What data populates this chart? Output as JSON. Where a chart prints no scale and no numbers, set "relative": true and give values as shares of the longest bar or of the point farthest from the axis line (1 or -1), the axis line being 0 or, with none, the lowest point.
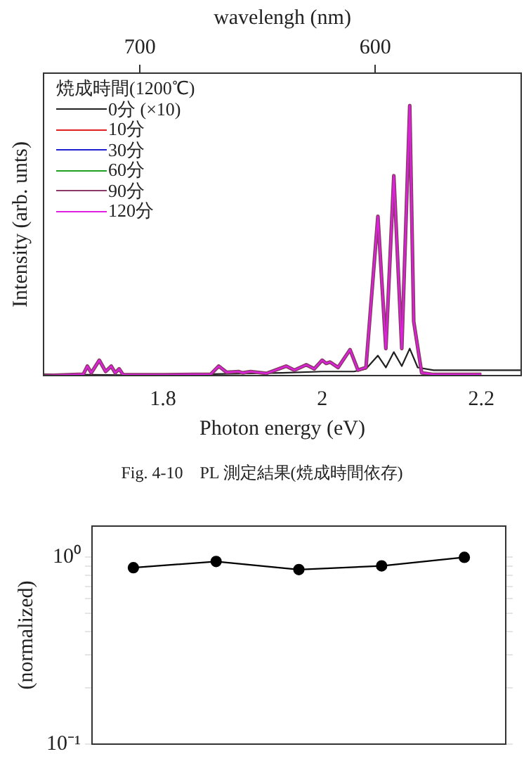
{
  "chart_data": [
    {
      "type": "line",
      "relative": true,
      "xlabel": "Photon energy (eV)",
      "ylabel": "Intensity (arb. unts)",
      "x2label": "wavelengh (nm)",
      "xlim": [
        1.65,
        2.25
      ],
      "xticks": [
        1.8,
        2,
        2.2
      ],
      "x2lim": [
        741,
        538
      ],
      "x2ticks": [
        700,
        600
      ],
      "legend": "top left",
      "legend_title": "焼成時間(1200℃)",
      "marker": "none",
      "annotations": [
        "Fig. 4-10　PL 測定結果(焼成時間依存)"
      ],
      "series": [
        {
          "name": "0分 (×10)",
          "color": "#202020",
          "x": [
            1.65,
            1.75,
            1.85,
            1.95,
            2.0,
            2.04,
            2.055,
            2.07,
            2.08,
            2.09,
            2.1,
            2.11,
            2.12,
            2.14,
            2.2,
            2.25
          ],
          "values": [
            0.005,
            0.002,
            0.005,
            0.01,
            0.015,
            0.015,
            0.025,
            0.074,
            0.03,
            0.087,
            0.035,
            0.1,
            0.03,
            0.02,
            0.02,
            0.02
          ]
        },
        {
          "name": "10分",
          "color": "#e02020"
        },
        {
          "name": "30分",
          "color": "#2020d0"
        },
        {
          "name": "60分",
          "color": "#20a020"
        },
        {
          "name": "90分",
          "color": "#8b3a6a",
          "x": [
            1.65,
            1.7,
            1.705,
            1.71,
            1.72,
            1.728,
            1.735,
            1.74,
            1.745,
            1.75,
            1.8,
            1.86,
            1.87,
            1.88,
            1.895,
            1.9,
            1.91,
            1.93,
            1.955,
            1.965,
            1.98,
            1.99,
            2.0,
            2.005,
            2.01,
            2.02,
            2.035,
            2.045,
            2.055,
            2.07,
            2.08,
            2.09,
            2.1,
            2.11,
            2.115,
            2.125,
            2.14,
            2.2
          ],
          "values": [
            0,
            0.005,
            0.035,
            0.01,
            0.057,
            0.015,
            0.035,
            0.01,
            0.025,
            0.003,
            0.003,
            0.005,
            0.035,
            0.012,
            0.015,
            0.01,
            0.015,
            0.008,
            0.035,
            0.02,
            0.04,
            0.025,
            0.057,
            0.045,
            0.05,
            0.03,
            0.096,
            0.02,
            0.03,
            0.59,
            0.1,
            0.74,
            0.1,
            1.0,
            0.2,
            0.01,
            0.004,
            0.004
          ]
        },
        {
          "name": "120分",
          "color": "#e020e0",
          "x": [
            1.65,
            1.7,
            1.705,
            1.71,
            1.72,
            1.728,
            1.735,
            1.74,
            1.745,
            1.75,
            1.8,
            1.86,
            1.87,
            1.88,
            1.895,
            1.9,
            1.91,
            1.93,
            1.955,
            1.965,
            1.98,
            1.99,
            2.0,
            2.005,
            2.01,
            2.02,
            2.035,
            2.045,
            2.055,
            2.07,
            2.08,
            2.09,
            2.1,
            2.11,
            2.115,
            2.125,
            2.14,
            2.2
          ],
          "values": [
            0,
            0.005,
            0.035,
            0.01,
            0.057,
            0.015,
            0.035,
            0.01,
            0.025,
            0.003,
            0.003,
            0.005,
            0.035,
            0.012,
            0.015,
            0.01,
            0.015,
            0.008,
            0.035,
            0.02,
            0.04,
            0.025,
            0.057,
            0.045,
            0.05,
            0.03,
            0.096,
            0.02,
            0.03,
            0.59,
            0.1,
            0.74,
            0.1,
            1.0,
            0.2,
            0.01,
            0.004,
            0.004
          ]
        }
      ]
    },
    {
      "type": "line",
      "ylabel": "(normalized)",
      "log": true,
      "ylim": [
        0.1,
        1.47
      ],
      "yticks": [
        {
          "value": 1,
          "label": "10⁰"
        },
        {
          "value": 0.9,
          "label": null
        },
        {
          "value": 0.8,
          "label": null
        },
        {
          "value": 0.7,
          "label": null
        },
        {
          "value": 0.6,
          "label": null
        },
        {
          "value": 0.5,
          "label": null
        },
        {
          "value": 0.4,
          "label": null
        },
        {
          "value": 0.3,
          "label": null
        },
        {
          "value": 0.2,
          "label": null
        },
        {
          "value": 0.1,
          "label": "10⁻¹"
        }
      ],
      "tick_labels": "y",
      "marker": "circle",
      "categories": [
        null,
        null,
        null,
        null,
        null
      ],
      "series": [
        {
          "color": "#000000",
          "values": [
            0.88,
            0.95,
            0.86,
            0.9,
            1.0
          ]
        }
      ]
    }
  ]
}
